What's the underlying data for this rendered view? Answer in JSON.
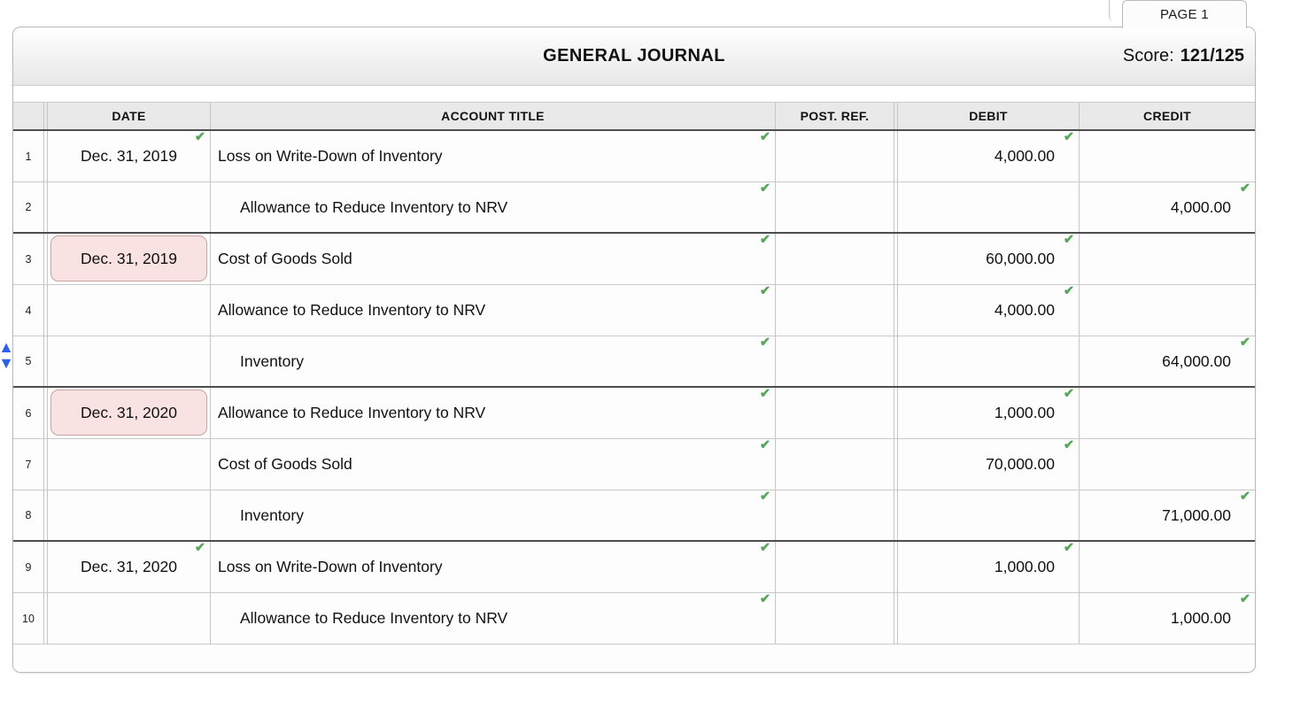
{
  "page": {
    "tab_label": "PAGE 1",
    "title": "GENERAL JOURNAL",
    "score_label": "Score:",
    "score_value": "121/125"
  },
  "icons": {
    "check": "✔",
    "move_up": "▲",
    "move_down": "▼"
  },
  "colors": {
    "check_green": "#58a55c",
    "flag_pink_bg": "#f8e2e2",
    "flag_pink_border": "#c9a2a2",
    "arrow_blue": "#2e5fe8",
    "entry_separator": "#4d4d4d"
  },
  "journal": {
    "columns": {
      "date": "DATE",
      "account_title": "ACCOUNT TITLE",
      "post_ref": "POST. REF.",
      "debit": "DEBIT",
      "credit": "CREDIT"
    },
    "rows": [
      {
        "num": "1",
        "date": "Dec. 31, 2019",
        "date_checked": true,
        "date_highlighted": false,
        "title": "Loss on Write-Down of Inventory",
        "title_indented": false,
        "debit": "4,000.00",
        "credit": ""
      },
      {
        "num": "2",
        "date": "",
        "date_checked": false,
        "date_highlighted": false,
        "title": "Allowance to Reduce Inventory to NRV",
        "title_indented": true,
        "debit": "",
        "credit": "4,000.00"
      },
      {
        "num": "3",
        "date": "Dec. 31, 2019",
        "date_checked": false,
        "date_highlighted": true,
        "title": "Cost of Goods Sold",
        "title_indented": false,
        "debit": "60,000.00",
        "credit": ""
      },
      {
        "num": "4",
        "date": "",
        "date_checked": false,
        "date_highlighted": false,
        "title": "Allowance to Reduce Inventory to NRV",
        "title_indented": false,
        "debit": "4,000.00",
        "credit": ""
      },
      {
        "num": "5",
        "date": "",
        "date_checked": false,
        "date_highlighted": false,
        "title": "Inventory",
        "title_indented": true,
        "debit": "",
        "credit": "64,000.00"
      },
      {
        "num": "6",
        "date": "Dec. 31, 2020",
        "date_checked": false,
        "date_highlighted": true,
        "title": "Allowance to Reduce Inventory to NRV",
        "title_indented": false,
        "debit": "1,000.00",
        "credit": ""
      },
      {
        "num": "7",
        "date": "",
        "date_checked": false,
        "date_highlighted": false,
        "title": "Cost of Goods Sold",
        "title_indented": false,
        "debit": "70,000.00",
        "credit": ""
      },
      {
        "num": "8",
        "date": "",
        "date_checked": false,
        "date_highlighted": false,
        "title": "Inventory",
        "title_indented": true,
        "debit": "",
        "credit": "71,000.00"
      },
      {
        "num": "9",
        "date": "Dec. 31, 2020",
        "date_checked": true,
        "date_highlighted": false,
        "title": "Loss on Write-Down of Inventory",
        "title_indented": false,
        "debit": "1,000.00",
        "credit": ""
      },
      {
        "num": "10",
        "date": "",
        "date_checked": false,
        "date_highlighted": false,
        "title": "Allowance to Reduce Inventory to NRV",
        "title_indented": true,
        "debit": "",
        "credit": "1,000.00"
      }
    ]
  }
}
